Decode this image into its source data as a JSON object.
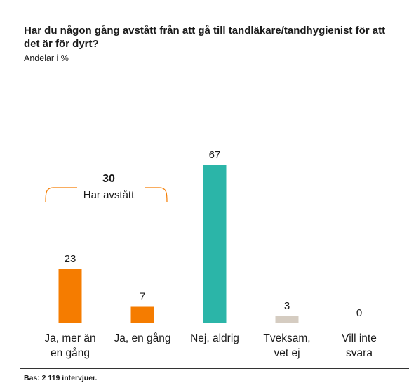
{
  "header": {
    "title": "Har du någon gång avstått från att gå till tandläkare/tandhygienist för att det är för dyrt?",
    "subtitle": "Andelar i %"
  },
  "footer": {
    "base": "Bas: 2 119 intervjuer."
  },
  "colors": {
    "orange": "#F57C00",
    "teal": "#2BB5A8",
    "beige": "#D5CCC1",
    "text": "#1a1a1a"
  },
  "chart_data": {
    "type": "bar",
    "categories": [
      [
        "Ja, mer än",
        "en gång"
      ],
      [
        "Ja, en gång"
      ],
      [
        "Nej, aldrig"
      ],
      [
        "Tveksam,",
        "vet ej"
      ],
      [
        "Vill inte",
        "svara"
      ]
    ],
    "values": [
      23,
      7,
      67,
      3,
      0
    ],
    "bar_colors": [
      "#F57C00",
      "#F57C00",
      "#2BB5A8",
      "#D5CCC1",
      "#D5CCC1"
    ],
    "ylim": [
      0,
      67
    ],
    "grid": false,
    "annotation": {
      "value": "30",
      "label": "Har avstått",
      "spans_categories": [
        0,
        1
      ]
    }
  }
}
